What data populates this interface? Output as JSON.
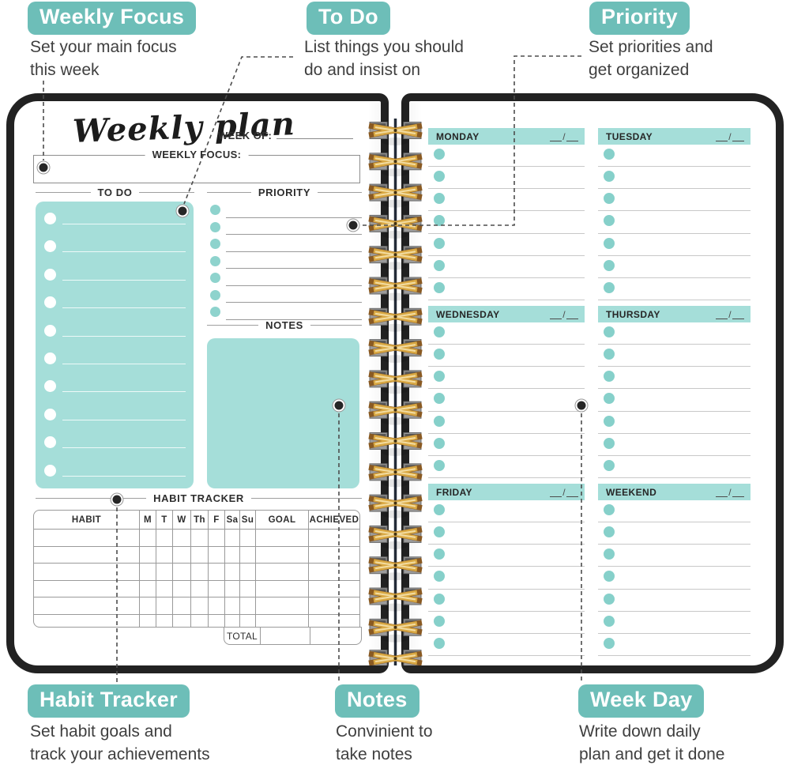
{
  "callouts": {
    "weekly_focus": {
      "label": "Weekly Focus",
      "desc": "Set your main focus\nthis week"
    },
    "to_do": {
      "label": "To Do",
      "desc": "List things you should\ndo and insist on"
    },
    "priority": {
      "label": "Priority",
      "desc": "Set priorities and\nget organized"
    },
    "habit_tracker": {
      "label": "Habit Tracker",
      "desc": "Set habit goals and\ntrack your achievements"
    },
    "notes": {
      "label": "Notes",
      "desc": "Convinient to\ntake notes"
    },
    "week_day": {
      "label": "Week Day",
      "desc": "Write down daily\nplan and get it done"
    }
  },
  "left_page": {
    "title": "Weekly plan",
    "week_of_label": "WEEK OF:",
    "weekly_focus_label": "WEEKLY FOCUS:",
    "todo_heading": "TO DO",
    "priority_heading": "PRIORITY",
    "notes_heading": "NOTES",
    "habit_tracker_heading": "HABIT TRACKER",
    "todo_rows": 10,
    "priority_rows": 7,
    "habit_table": {
      "headers": [
        "HABIT",
        "M",
        "T",
        "W",
        "Th",
        "F",
        "Sa",
        "Su",
        "GOAL",
        "ACHIEVED"
      ],
      "body_rows": 6,
      "total_label": "TOTAL"
    }
  },
  "right_page": {
    "sections": [
      {
        "left_day": "MONDAY",
        "right_day": "TUESDAY"
      },
      {
        "left_day": "WEDNESDAY",
        "right_day": "THURSDAY"
      },
      {
        "left_day": "FRIDAY",
        "right_day": "WEEKEND"
      }
    ],
    "date_slash": "/",
    "rows_per_day": 7
  },
  "colors": {
    "badge_teal": "#6dbeb8",
    "panel_teal": "#a5ded9",
    "bullet_teal": "#86d0ca",
    "cover_black": "#222222",
    "spiral_gold": "#d9a843",
    "spine_navy": "#232b38"
  }
}
